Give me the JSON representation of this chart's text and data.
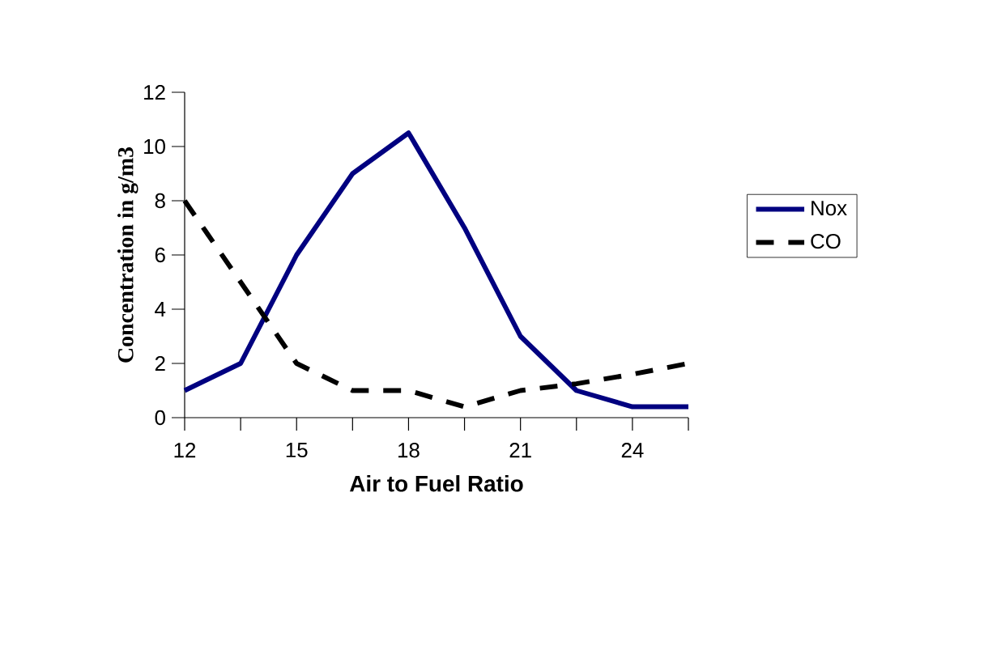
{
  "chart_data": {
    "type": "line",
    "xlabel": "Air to Fuel Ratio",
    "ylabel": "Concentration in g/m3",
    "x": [
      12,
      13.5,
      15,
      16.5,
      18,
      19.5,
      21,
      22.5,
      24,
      25.5
    ],
    "series": [
      {
        "name": "Nox",
        "color": "#000080",
        "line_style": "solid",
        "values": [
          1,
          2,
          6,
          9,
          10.5,
          7,
          3,
          1,
          0.4,
          0.4
        ]
      },
      {
        "name": "CO",
        "color": "#000000",
        "line_style": "dashed",
        "values": [
          8,
          5,
          2,
          1,
          1,
          0.4,
          1,
          1.25,
          1.6,
          2
        ]
      }
    ],
    "xlim": [
      12,
      25.5
    ],
    "xticks": [
      12,
      {
        "value": 13.5,
        "label": null
      },
      15,
      {
        "value": 16.5,
        "label": null
      },
      18,
      {
        "value": 19.5,
        "label": null
      },
      21,
      {
        "value": 22.5,
        "label": null
      },
      24,
      {
        "value": 25.5,
        "label": null
      }
    ],
    "ylim": [
      0,
      12
    ],
    "yticks": [
      0,
      2,
      4,
      6,
      8,
      10,
      12
    ],
    "grid": false,
    "legend": "right",
    "marker": "none"
  }
}
